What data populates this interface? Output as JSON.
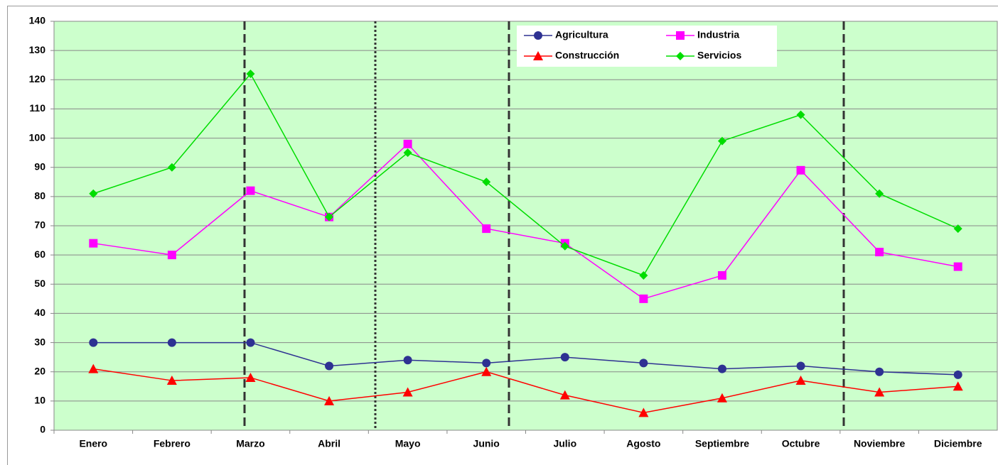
{
  "chart_data": {
    "type": "line",
    "categories": [
      "Enero",
      "Febrero",
      "Marzo",
      "Abril",
      "Mayo",
      "Junio",
      "Julio",
      "Agosto",
      "Septiembre",
      "Octubre",
      "Noviembre",
      "Diciembre"
    ],
    "series": [
      {
        "name": "Agricultura",
        "color": "#2e3192",
        "marker": "circle",
        "values": [
          30,
          30,
          30,
          22,
          24,
          23,
          25,
          23,
          21,
          22,
          20,
          19
        ]
      },
      {
        "name": "Industria",
        "color": "#ff00ff",
        "marker": "square",
        "values": [
          64,
          60,
          82,
          73,
          98,
          69,
          64,
          45,
          53,
          89,
          61,
          56
        ]
      },
      {
        "name": "Construcción",
        "color": "#ff0000",
        "marker": "triangle",
        "values": [
          21,
          17,
          18,
          10,
          13,
          20,
          12,
          6,
          11,
          17,
          13,
          15
        ]
      },
      {
        "name": "Servicios",
        "color": "#00dd00",
        "marker": "diamond",
        "values": [
          81,
          90,
          122,
          73,
          95,
          85,
          63,
          53,
          99,
          108,
          81,
          69
        ]
      }
    ],
    "ylim": [
      0,
      140
    ],
    "yticks": [
      0,
      10,
      20,
      30,
      40,
      50,
      60,
      70,
      80,
      90,
      100,
      110,
      120,
      130,
      140
    ],
    "grid": true,
    "plot_background": "#ccffcc"
  }
}
